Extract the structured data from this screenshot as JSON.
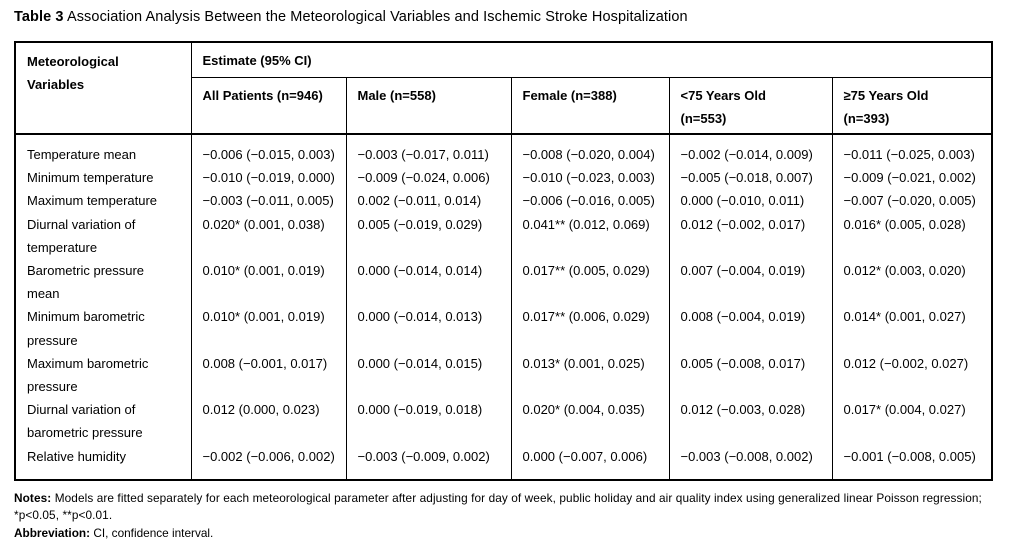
{
  "title": {
    "label": "Table 3",
    "text": "Association Analysis Between the Meteorological Variables and Ischemic Stroke Hospitalization"
  },
  "table": {
    "corner_header": [
      "Meteorological",
      "Variables"
    ],
    "span_header": "Estimate (95% CI)",
    "columns": [
      {
        "lines": [
          "All Patients (n=946)"
        ]
      },
      {
        "lines": [
          "Male (n=558)"
        ]
      },
      {
        "lines": [
          "Female (n=388)"
        ]
      },
      {
        "lines": [
          "<75 Years Old",
          "(n=553)"
        ]
      },
      {
        "lines": [
          "≥75 Years Old",
          "(n=393)"
        ]
      }
    ],
    "rows": [
      {
        "label_lines": [
          "Temperature mean"
        ],
        "values": [
          "−0.006 (−0.015, 0.003)",
          "−0.003 (−0.017, 0.011)",
          "−0.008 (−0.020, 0.004)",
          "−0.002 (−0.014, 0.009)",
          "−0.011 (−0.025, 0.003)"
        ]
      },
      {
        "label_lines": [
          "Minimum temperature"
        ],
        "values": [
          "−0.010 (−0.019, 0.000)",
          "−0.009 (−0.024, 0.006)",
          "−0.010 (−0.023, 0.003)",
          "−0.005 (−0.018, 0.007)",
          "−0.009 (−0.021, 0.002)"
        ]
      },
      {
        "label_lines": [
          "Maximum temperature"
        ],
        "values": [
          "−0.003 (−0.011, 0.005)",
          "0.002 (−0.011, 0.014)",
          "−0.006 (−0.016, 0.005)",
          "0.000 (−0.010, 0.011)",
          "−0.007 (−0.020, 0.005)"
        ]
      },
      {
        "label_lines": [
          "Diurnal variation of",
          "temperature"
        ],
        "values": [
          "0.020* (0.001, 0.038)",
          "0.005 (−0.019, 0.029)",
          "0.041** (0.012, 0.069)",
          "0.012 (−0.002, 0.017)",
          "0.016* (0.005, 0.028)"
        ]
      },
      {
        "label_lines": [
          "Barometric pressure",
          "mean"
        ],
        "values": [
          "0.010* (0.001, 0.019)",
          "0.000 (−0.014, 0.014)",
          "0.017** (0.005, 0.029)",
          "0.007 (−0.004, 0.019)",
          "0.012* (0.003, 0.020)"
        ]
      },
      {
        "label_lines": [
          "Minimum barometric",
          "pressure"
        ],
        "values": [
          "0.010* (0.001, 0.019)",
          "0.000 (−0.014, 0.013)",
          "0.017** (0.006, 0.029)",
          "0.008 (−0.004, 0.019)",
          "0.014* (0.001, 0.027)"
        ]
      },
      {
        "label_lines": [
          "Maximum barometric",
          "pressure"
        ],
        "values": [
          "0.008 (−0.001, 0.017)",
          "0.000 (−0.014, 0.015)",
          "0.013* (0.001, 0.025)",
          "0.005 (−0.008, 0.017)",
          "0.012 (−0.002, 0.027)"
        ]
      },
      {
        "label_lines": [
          "Diurnal variation of",
          "barometric pressure"
        ],
        "values": [
          "0.012 (0.000, 0.023)",
          "0.000 (−0.019, 0.018)",
          "0.020* (0.004, 0.035)",
          "0.012 (−0.003, 0.028)",
          "0.017* (0.004, 0.027)"
        ]
      },
      {
        "label_lines": [
          "Relative humidity"
        ],
        "values": [
          "−0.002 (−0.006, 0.002)",
          "−0.003 (−0.009, 0.002)",
          "0.000 (−0.007, 0.006)",
          "−0.003 (−0.008, 0.002)",
          "−0.001 (−0.008, 0.005)"
        ]
      }
    ]
  },
  "footnotes": {
    "notes_label": "Notes:",
    "notes_text": "Models are fitted separately for each meteorological parameter after adjusting for day of week, public holiday and air quality index using generalized linear Poisson regression; *p<0.05, **p<0.01.",
    "abbreviation_label": "Abbreviation:",
    "abbreviation_text": "CI, confidence interval."
  }
}
